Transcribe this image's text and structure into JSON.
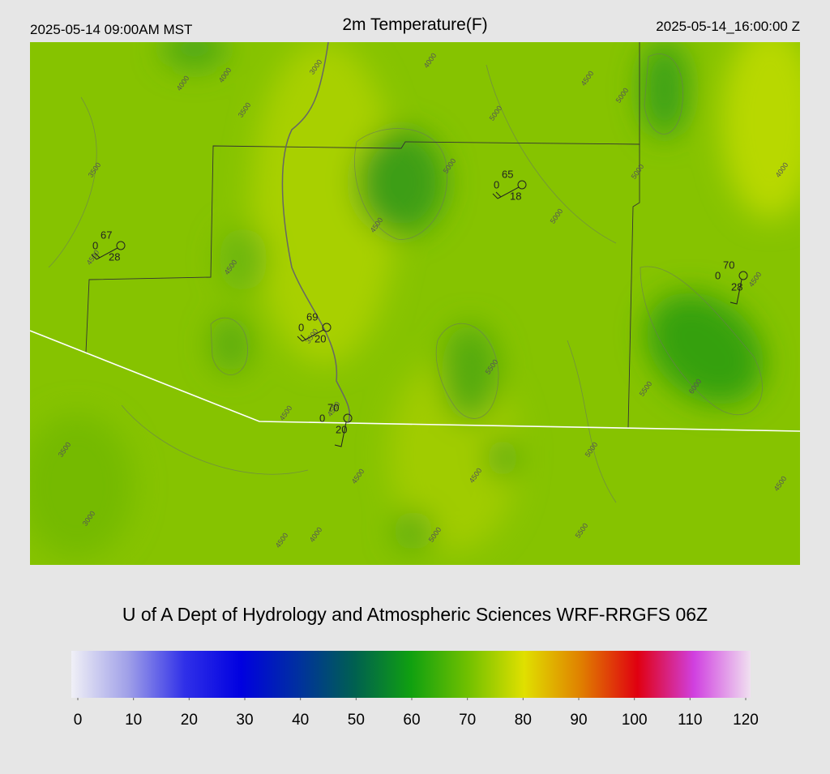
{
  "header": {
    "left": "2025-05-14 09:00AM MST",
    "title": "2m Temperature(F)",
    "right": "2025-05-14_16:00:00 Z"
  },
  "stations": [
    {
      "top": "67",
      "left": "0",
      "bottom": "28"
    },
    {
      "top": "65",
      "left": "0",
      "bottom": "18"
    },
    {
      "top": "70",
      "left": "0",
      "bottom": "28"
    },
    {
      "top": "69",
      "left": "0",
      "bottom": "20"
    },
    {
      "top": "70",
      "left": "0",
      "bottom": "20"
    }
  ],
  "contour_labels": [
    "4000",
    "4000",
    "3500",
    "3000",
    "4000",
    "5000",
    "5000",
    "4500",
    "5000",
    "5000",
    "4000",
    "3500",
    "5000",
    "4500",
    "4500",
    "4500",
    "4500",
    "3500",
    "5500",
    "5500",
    "6000",
    "4500",
    "4500",
    "3500",
    "5000",
    "4500",
    "4500",
    "4500",
    "3000",
    "4500",
    "4000",
    "5000",
    "5500"
  ],
  "credit": "U of A Dept of Hydrology and Atmospheric Sciences WRF-RRGFS 06Z",
  "colorbar": {
    "lim": [
      0,
      120
    ],
    "ticks": [
      0,
      10,
      20,
      30,
      40,
      50,
      60,
      70,
      80,
      90,
      100,
      110,
      120
    ],
    "colors": [
      "#f0f0f6",
      "#a0a0e8",
      "#3030e8",
      "#0000e0",
      "#0030a0",
      "#006050",
      "#10a010",
      "#70c000",
      "#e0e000",
      "#e08000",
      "#e00010",
      "#d040e0",
      "#f0e0f0"
    ]
  }
}
